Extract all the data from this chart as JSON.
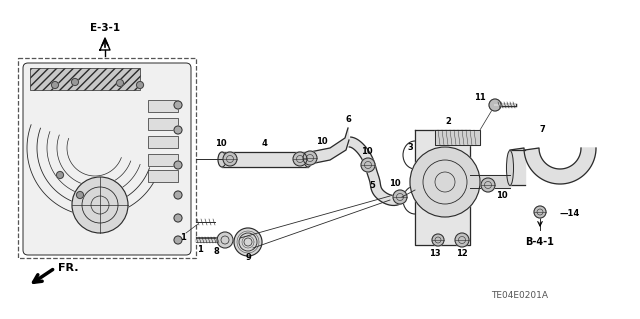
{
  "bg_color": "#ffffff",
  "diagram_code": "TE04E0201A",
  "ref_e31": "E-3-1",
  "ref_b41": "B-4-1",
  "fr_label": "FR.",
  "line_color": "#2a2a2a",
  "label_color": "#000000",
  "dashed_color": "#555555"
}
